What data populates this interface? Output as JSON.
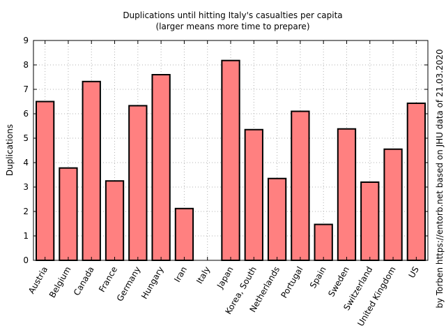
{
  "chart_data": {
    "type": "bar",
    "title": "Duplications until hitting Italy's casualties per capita",
    "subtitle": "(larger means more time to prepare)",
    "xlabel": "",
    "ylabel": "Duplications",
    "side_note": "by Torben https://entorb.net based on JHU data of 21.03.2020",
    "categories": [
      "Austria",
      "Belgium",
      "Canada",
      "France",
      "Germany",
      "Hungary",
      "Iran",
      "Italy",
      "Japan",
      "Korea, South",
      "Netherlands",
      "Portugal",
      "Spain",
      "Sweden",
      "Switzerland",
      "United Kingdom",
      "US"
    ],
    "values": [
      6.5,
      3.78,
      7.32,
      3.25,
      6.33,
      7.6,
      2.12,
      0,
      8.18,
      5.35,
      3.35,
      6.1,
      1.47,
      5.38,
      3.2,
      4.55,
      6.43
    ],
    "ylim": [
      0,
      9
    ],
    "yticks": [
      0,
      1,
      2,
      3,
      4,
      5,
      6,
      7,
      8,
      9
    ],
    "grid": true,
    "bar_color": "#ff8080",
    "edge_color": "#000000"
  }
}
